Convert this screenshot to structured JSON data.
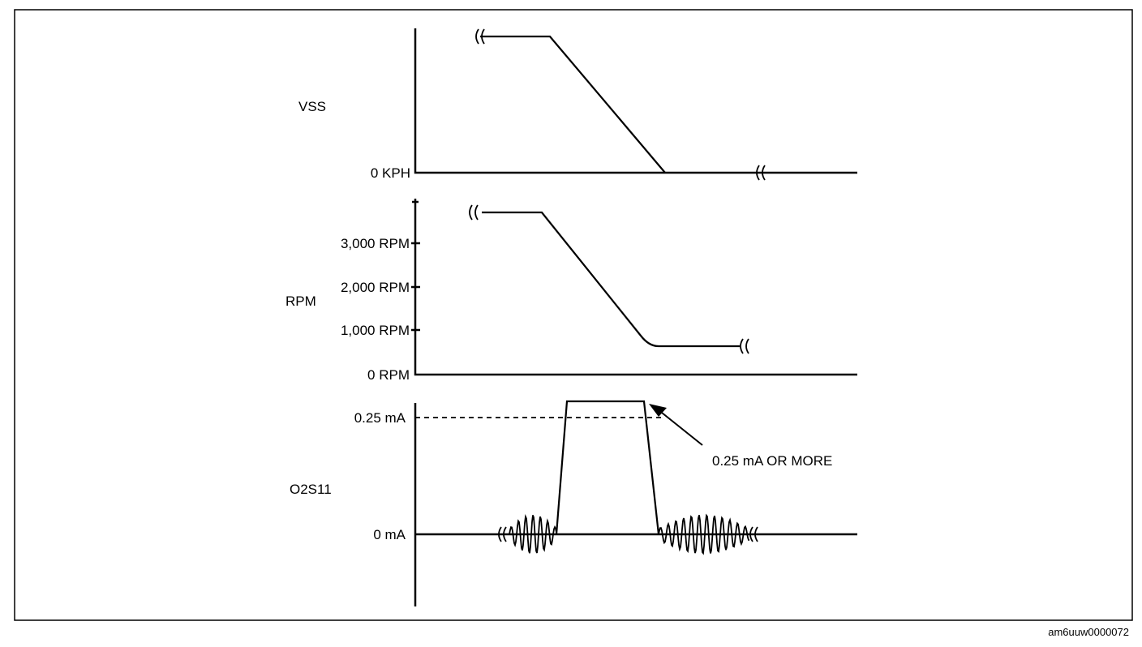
{
  "figure_id": "am6uuw0000072",
  "panels": {
    "vss": {
      "label": "VSS",
      "ticks": [
        "0 KPH"
      ]
    },
    "rpm": {
      "label": "RPM",
      "ticks": [
        "3,000 RPM",
        "2,000 RPM",
        "1,000 RPM",
        "0 RPM"
      ]
    },
    "o2s11": {
      "label": "O2S11",
      "ticks": [
        "0.25 mA",
        "0 mA"
      ],
      "annotation": "0.25 mA OR MORE"
    }
  }
}
